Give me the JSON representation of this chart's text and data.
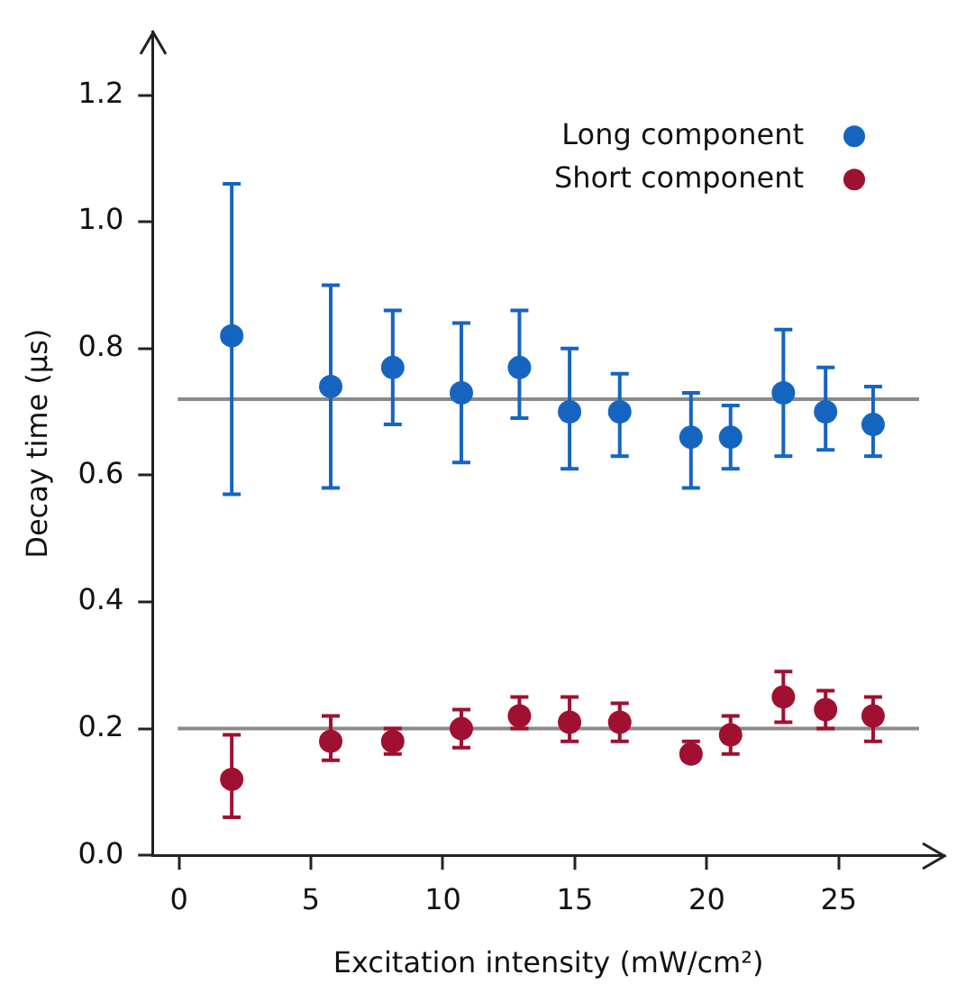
{
  "chart_data": {
    "type": "scatter",
    "xlabel": "Excitation intensity (mW/cm²)",
    "ylabel": "Decay time (μs)",
    "x": [
      2,
      5.75,
      8.1,
      10.7,
      12.9,
      14.8,
      16.7,
      19.4,
      20.9,
      22.9,
      24.5,
      26.3
    ],
    "series": [
      {
        "name": "Long component",
        "color": "#1565c0",
        "values": [
          0.82,
          0.74,
          0.77,
          0.73,
          0.77,
          0.7,
          0.7,
          0.66,
          0.66,
          0.73,
          0.7,
          0.68
        ],
        "errors": [
          [
            0.57,
            1.06
          ],
          [
            0.58,
            0.9
          ],
          [
            0.68,
            0.86
          ],
          [
            0.62,
            0.84
          ],
          [
            0.69,
            0.86
          ],
          [
            0.61,
            0.8
          ],
          [
            0.63,
            0.76
          ],
          [
            0.58,
            0.73
          ],
          [
            0.61,
            0.71
          ],
          [
            0.63,
            0.83
          ],
          [
            0.64,
            0.77
          ],
          [
            0.63,
            0.74
          ]
        ]
      },
      {
        "name": "Short component",
        "color": "#a01030",
        "values": [
          0.12,
          0.18,
          0.18,
          0.2,
          0.22,
          0.21,
          0.21,
          0.16,
          0.19,
          0.25,
          0.23,
          0.22
        ],
        "errors": [
          [
            0.06,
            0.19
          ],
          [
            0.15,
            0.22
          ],
          [
            0.16,
            0.2
          ],
          [
            0.17,
            0.23
          ],
          [
            0.2,
            0.25
          ],
          [
            0.18,
            0.25
          ],
          [
            0.18,
            0.24
          ],
          [
            0.15,
            0.18
          ],
          [
            0.16,
            0.22
          ],
          [
            0.21,
            0.29
          ],
          [
            0.2,
            0.26
          ],
          [
            0.18,
            0.25
          ]
        ]
      }
    ],
    "ref_lines": [
      {
        "axis": "y",
        "value": 0.72,
        "color": "#8a8a8a"
      },
      {
        "axis": "y",
        "value": 0.2,
        "color": "#8a8a8a"
      }
    ],
    "xlim": [
      -1,
      29
    ],
    "xticks": [
      0,
      5,
      10,
      15,
      20,
      25
    ],
    "ylim": [
      0,
      1.3
    ],
    "yticks": [
      {
        "value": 0,
        "label": "0.0"
      },
      0.2,
      0.4,
      0.6,
      0.8,
      {
        "value": 1,
        "label": "1.0"
      },
      1.2
    ],
    "legend": "top right",
    "marker": "circle"
  }
}
